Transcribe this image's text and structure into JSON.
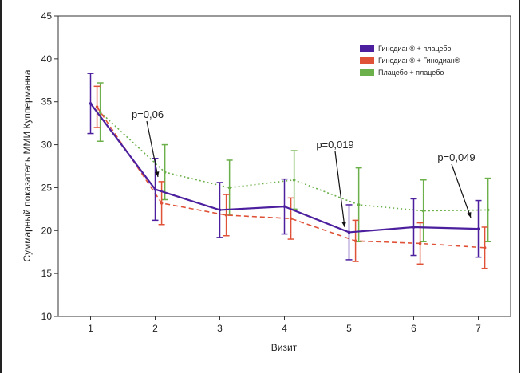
{
  "chart_data": {
    "type": "line",
    "title": "",
    "xlabel": "Визит",
    "ylabel": "Суммарный показатель ММИ Купперманна",
    "xlim": [
      0.5,
      7.5
    ],
    "ylim": [
      10,
      45
    ],
    "x_ticks": [
      "1",
      "2",
      "3",
      "4",
      "5",
      "6",
      "7"
    ],
    "y_ticks": [
      "10",
      "15",
      "20",
      "25",
      "30",
      "35",
      "40",
      "45"
    ],
    "grid": false,
    "legend_position": "top-right",
    "series": [
      {
        "name": "Гинодиан® + плацебо",
        "color": "#4b1f9e",
        "line_style": "solid",
        "x": [
          1,
          2,
          3,
          4,
          5,
          6,
          7
        ],
        "y": [
          34.8,
          24.8,
          22.4,
          22.8,
          19.8,
          20.4,
          20.2
        ],
        "err": [
          3.5,
          3.6,
          3.2,
          3.2,
          3.2,
          3.3,
          3.3
        ]
      },
      {
        "name": "Гинодиан® + Гинодиан®",
        "color": "#e05238",
        "line_style": "dashed",
        "x": [
          1.1,
          2.1,
          3.1,
          4.1,
          5.1,
          6.1,
          7.1
        ],
        "y": [
          34.4,
          23.2,
          21.8,
          21.4,
          18.8,
          18.5,
          18.0
        ],
        "err": [
          2.4,
          2.5,
          2.4,
          2.4,
          2.4,
          2.4,
          2.4
        ]
      },
      {
        "name": "Плацебо + плацебо",
        "color": "#6bb04a",
        "line_style": "dotted",
        "x": [
          1.15,
          2.15,
          3.15,
          4.15,
          5.15,
          6.15,
          7.15
        ],
        "y": [
          33.8,
          26.8,
          25.0,
          25.9,
          23.0,
          22.3,
          22.4
        ],
        "err": [
          3.4,
          3.2,
          3.2,
          3.4,
          4.3,
          3.6,
          3.7
        ]
      }
    ],
    "annotations": [
      {
        "text": "p=0,06",
        "at_visit": 2
      },
      {
        "text": "p=0,019",
        "at_visit": 5
      },
      {
        "text": "p=0,049",
        "at_visit": 7
      }
    ]
  }
}
